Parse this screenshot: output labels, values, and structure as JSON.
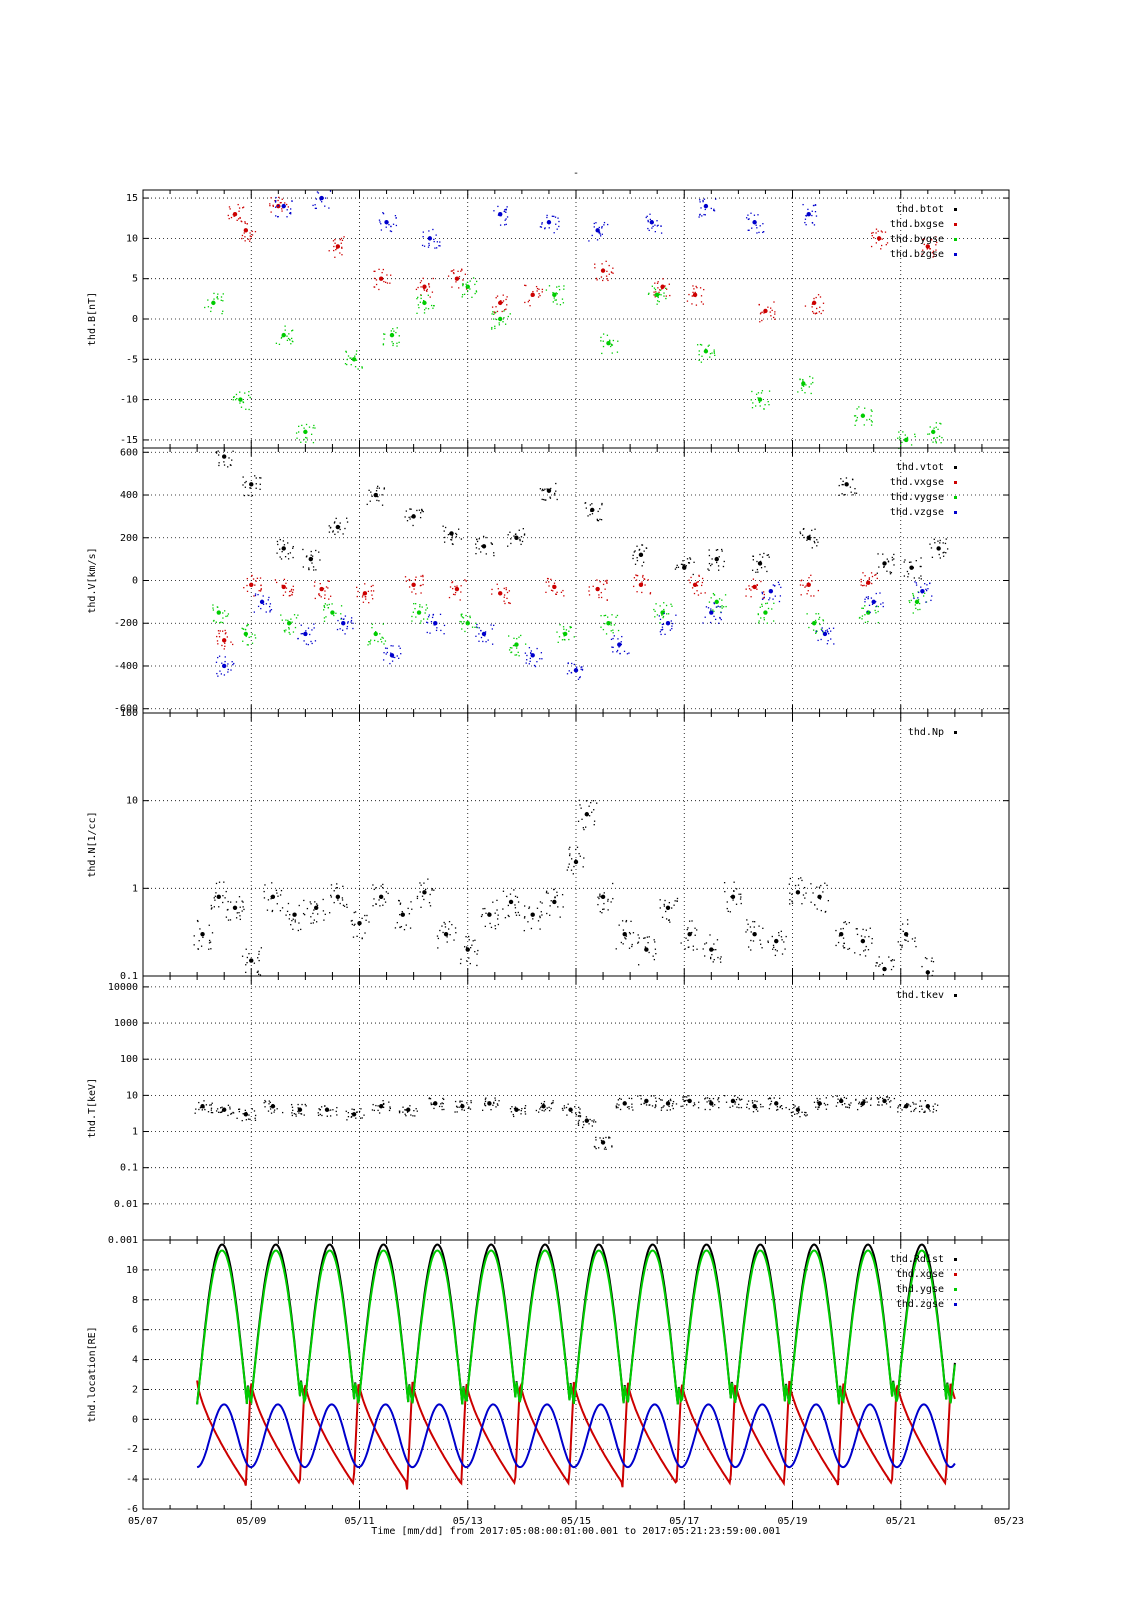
{
  "title": "-",
  "x_axis": {
    "label": "Time [mm/dd]  from 2017:05:08:00:01:00.001  to  2017:05:21:23:59:00.001",
    "tick_labels": [
      "05/07",
      "05/09",
      "05/11",
      "05/13",
      "05/15",
      "05/17",
      "05/19",
      "05/21",
      "05/23"
    ],
    "range_days": [
      0,
      16
    ],
    "origin_date": "05/07"
  },
  "chart_data": [
    {
      "type": "scatter",
      "ylabel": "thd.B[nT]",
      "ylim": [
        -16,
        16
      ],
      "yticks": [
        -15,
        -10,
        -5,
        0,
        5,
        10,
        15
      ],
      "ytick_labels": [
        "-15",
        "-10",
        "-5",
        "0",
        "5",
        "10",
        "15"
      ],
      "grid": true,
      "legend_position": "top-right",
      "series": [
        {
          "name": "thd.btot",
          "color": "#000000",
          "x": [],
          "y": []
        },
        {
          "name": "thd.bxgse",
          "color": "#cc0000",
          "x": [
            1.7,
            1.9,
            2.5,
            3.6,
            4.4,
            5.2,
            5.8,
            6.6,
            7.2,
            8.5,
            9.6,
            10.2,
            11.5,
            12.4,
            13.6,
            14.5
          ],
          "y": [
            13,
            11,
            14,
            9,
            5,
            4,
            5,
            2,
            3,
            6,
            4,
            3,
            1,
            2,
            10,
            9
          ]
        },
        {
          "name": "thd.bygse",
          "color": "#00cc00",
          "x": [
            1.3,
            1.8,
            2.6,
            3.0,
            3.9,
            4.6,
            5.2,
            6.0,
            6.6,
            7.6,
            8.6,
            9.5,
            10.4,
            11.4,
            12.2,
            13.3,
            14.1,
            14.6
          ],
          "y": [
            2,
            -10,
            -2,
            -14,
            -5,
            -2,
            2,
            4,
            0,
            3,
            -3,
            3,
            -4,
            -10,
            -8,
            -12,
            -15,
            -14
          ]
        },
        {
          "name": "thd.bzgse",
          "color": "#0000cc",
          "x": [
            2.6,
            3.3,
            4.5,
            5.3,
            6.6,
            7.5,
            8.4,
            9.4,
            10.4,
            11.3,
            12.3
          ],
          "y": [
            14,
            15,
            12,
            10,
            13,
            12,
            11,
            12,
            14,
            12,
            13
          ]
        }
      ]
    },
    {
      "type": "scatter",
      "ylabel": "thd.V[km/s]",
      "ylim": [
        -620,
        620
      ],
      "yticks": [
        -600,
        -400,
        -200,
        0,
        200,
        400,
        600
      ],
      "ytick_labels": [
        "-600",
        "-400",
        "-200",
        "0",
        "200",
        "400",
        "600"
      ],
      "grid": true,
      "legend_position": "top-right",
      "series": [
        {
          "name": "thd.vtot",
          "color": "#000000",
          "x": [
            1.5,
            2.0,
            2.6,
            3.1,
            3.6,
            4.3,
            5.0,
            5.7,
            6.3,
            6.9,
            7.5,
            8.3,
            9.2,
            10.0,
            10.6,
            11.4,
            12.3,
            13.0,
            13.7,
            14.2,
            14.7
          ],
          "y": [
            580,
            450,
            150,
            100,
            250,
            400,
            300,
            220,
            160,
            200,
            420,
            330,
            120,
            60,
            100,
            80,
            200,
            450,
            80,
            60,
            150
          ]
        },
        {
          "name": "thd.vxgse",
          "color": "#cc0000",
          "x": [
            1.5,
            2.0,
            2.6,
            3.3,
            4.1,
            5.0,
            5.8,
            6.6,
            7.6,
            8.4,
            9.2,
            10.2,
            11.3,
            12.3,
            13.4
          ],
          "y": [
            -280,
            -20,
            -30,
            -40,
            -60,
            -20,
            -40,
            -60,
            -30,
            -40,
            -20,
            -20,
            -30,
            -20,
            -10
          ]
        },
        {
          "name": "thd.vygse",
          "color": "#00cc00",
          "x": [
            1.4,
            1.9,
            2.7,
            3.5,
            4.3,
            5.1,
            6.0,
            6.9,
            7.8,
            8.6,
            9.6,
            10.6,
            11.5,
            12.4,
            13.4,
            14.3
          ],
          "y": [
            -150,
            -250,
            -200,
            -150,
            -250,
            -150,
            -200,
            -300,
            -250,
            -200,
            -150,
            -100,
            -150,
            -200,
            -150,
            -100
          ]
        },
        {
          "name": "thd.vzgse",
          "color": "#0000cc",
          "x": [
            1.5,
            2.2,
            3.0,
            3.7,
            4.6,
            5.4,
            6.3,
            7.2,
            8.0,
            8.8,
            9.7,
            10.5,
            11.6,
            12.6,
            13.5,
            14.4
          ],
          "y": [
            -400,
            -100,
            -250,
            -200,
            -350,
            -200,
            -250,
            -350,
            -420,
            -300,
            -200,
            -150,
            -50,
            -250,
            -100,
            -50
          ]
        }
      ]
    },
    {
      "type": "scatter",
      "ylabel": "thd.N[1/cc]",
      "yscale": "log",
      "ylim": [
        0.1,
        100
      ],
      "yticks": [
        0.1,
        1,
        10,
        100
      ],
      "ytick_labels": [
        "0.1",
        "1",
        "10",
        "100"
      ],
      "grid": true,
      "legend_position": "top-right",
      "series": [
        {
          "name": "thd.Np",
          "color": "#000000",
          "x": [
            1.1,
            1.4,
            1.7,
            2.0,
            2.4,
            2.8,
            3.2,
            3.6,
            4.0,
            4.4,
            4.8,
            5.2,
            5.6,
            6.0,
            6.4,
            6.8,
            7.2,
            7.6,
            8.0,
            8.2,
            8.5,
            8.9,
            9.3,
            9.7,
            10.1,
            10.5,
            10.9,
            11.3,
            11.7,
            12.1,
            12.5,
            12.9,
            13.3,
            13.7,
            14.1,
            14.5
          ],
          "y": [
            0.3,
            0.8,
            0.6,
            0.15,
            0.8,
            0.5,
            0.6,
            0.8,
            0.4,
            0.8,
            0.5,
            0.9,
            0.3,
            0.2,
            0.5,
            0.7,
            0.5,
            0.7,
            2.0,
            7.0,
            0.8,
            0.3,
            0.2,
            0.6,
            0.3,
            0.2,
            0.8,
            0.3,
            0.25,
            0.9,
            0.8,
            0.3,
            0.25,
            0.12,
            0.3,
            0.11
          ]
        }
      ]
    },
    {
      "type": "scatter",
      "ylabel": "thd.T[keV]",
      "yscale": "log",
      "ylim": [
        0.001,
        20000
      ],
      "yticks": [
        0.001,
        0.01,
        0.1,
        1,
        10,
        100,
        1000,
        10000
      ],
      "ytick_labels": [
        "0.001",
        "0.01",
        "0.1",
        "1",
        "10",
        "100",
        "1000",
        "10000"
      ],
      "grid": true,
      "legend_position": "top-right",
      "series": [
        {
          "name": "thd.tkev",
          "color": "#000000",
          "x": [
            1.1,
            1.5,
            1.9,
            2.4,
            2.9,
            3.4,
            3.9,
            4.4,
            4.9,
            5.4,
            5.9,
            6.4,
            6.9,
            7.4,
            7.9,
            8.2,
            8.5,
            8.9,
            9.3,
            9.7,
            10.1,
            10.5,
            10.9,
            11.3,
            11.7,
            12.1,
            12.5,
            12.9,
            13.3,
            13.7,
            14.1,
            14.5
          ],
          "y": [
            5,
            4,
            3,
            5,
            4,
            4,
            3,
            5,
            4,
            6,
            5,
            6,
            4,
            5,
            4,
            2,
            0.5,
            6,
            7,
            6,
            7,
            6,
            7,
            5,
            6,
            4,
            6,
            7,
            6,
            7,
            5,
            5
          ]
        }
      ]
    },
    {
      "type": "line",
      "ylabel": "thd.location[RE]",
      "ylim": [
        -6,
        12
      ],
      "yticks": [
        -6,
        -4,
        -2,
        0,
        2,
        4,
        6,
        8,
        10
      ],
      "ytick_labels": [
        "-6",
        "-4",
        "-2",
        "0",
        "2",
        "4",
        "6",
        "8",
        "10"
      ],
      "grid": true,
      "legend_position": "top-right",
      "orbit_period_days": 0.9945,
      "series": [
        {
          "name": "thd.Rdist",
          "color": "#000000",
          "min": 1.0,
          "max": 11.7
        },
        {
          "name": "thd.xgse",
          "color": "#cc0000",
          "min": -4.8,
          "max": 2.6
        },
        {
          "name": "thd.ygse",
          "color": "#00cc00",
          "min": 1.0,
          "max": 11.3
        },
        {
          "name": "thd.zgse",
          "color": "#0000cc",
          "min": -3.2,
          "max": 1.0
        }
      ]
    }
  ]
}
